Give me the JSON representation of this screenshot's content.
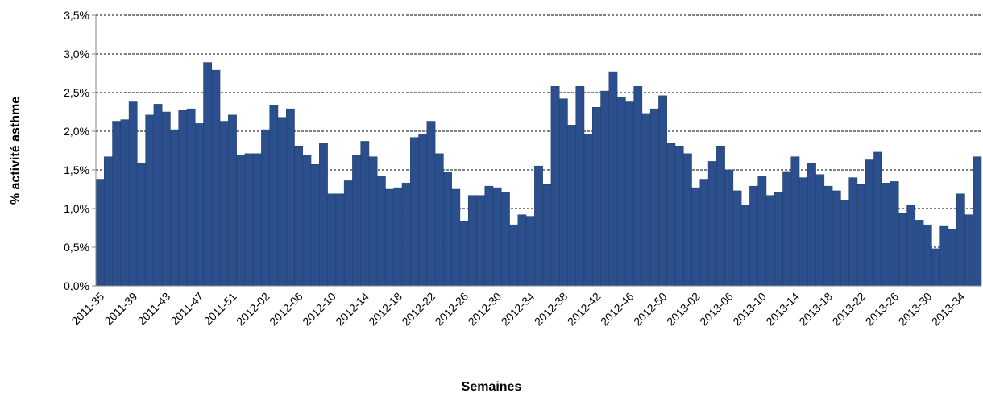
{
  "chart_data": {
    "type": "bar",
    "x_label": "Semaines",
    "y_label": "% activité asthme",
    "categories": [
      "2011-35",
      null,
      null,
      null,
      "2011-39",
      null,
      null,
      null,
      "2011-43",
      null,
      null,
      null,
      "2011-47",
      null,
      null,
      null,
      "2011-51",
      null,
      null,
      null,
      "2012-02",
      null,
      null,
      null,
      "2012-06",
      null,
      null,
      null,
      "2012-10",
      null,
      null,
      null,
      "2012-14",
      null,
      null,
      null,
      "2012-18",
      null,
      null,
      null,
      "2012-22",
      null,
      null,
      null,
      "2012-26",
      null,
      null,
      null,
      "2012-30",
      null,
      null,
      null,
      "2012-34",
      null,
      null,
      null,
      "2012-38",
      null,
      null,
      null,
      "2012-42",
      null,
      null,
      null,
      "2012-46",
      null,
      null,
      null,
      "2012-50",
      null,
      null,
      null,
      "2013-02",
      null,
      null,
      null,
      "2013-06",
      null,
      null,
      null,
      "2013-10",
      null,
      null,
      null,
      "2013-14",
      null,
      null,
      null,
      "2013-18",
      null,
      null,
      null,
      "2013-22",
      null,
      null,
      null,
      "2013-26",
      null,
      null,
      null,
      "2013-30",
      null,
      null,
      null,
      "2013-34",
      null,
      null
    ],
    "values": [
      1.38,
      1.67,
      2.13,
      2.15,
      2.38,
      1.59,
      2.21,
      2.35,
      2.25,
      2.02,
      2.27,
      2.29,
      2.1,
      2.89,
      2.79,
      2.13,
      2.21,
      1.69,
      1.71,
      1.71,
      2.02,
      2.33,
      2.18,
      2.29,
      1.81,
      1.69,
      1.57,
      1.85,
      1.19,
      1.19,
      1.36,
      1.69,
      1.87,
      1.67,
      1.42,
      1.25,
      1.27,
      1.33,
      1.92,
      1.96,
      2.13,
      1.71,
      1.47,
      1.25,
      0.83,
      1.17,
      1.17,
      1.29,
      1.27,
      1.21,
      0.79,
      0.92,
      0.9,
      1.55,
      1.31,
      2.58,
      2.42,
      2.08,
      2.58,
      1.96,
      2.31,
      2.52,
      2.77,
      2.44,
      2.38,
      2.58,
      2.23,
      2.29,
      2.46,
      1.85,
      1.81,
      1.71,
      1.27,
      1.38,
      1.61,
      1.81,
      1.5,
      1.23,
      1.04,
      1.29,
      1.42,
      1.17,
      1.21,
      1.48,
      1.67,
      1.4,
      1.58,
      1.44,
      1.29,
      1.23,
      1.11,
      1.4,
      1.31,
      1.63,
      1.73,
      1.33,
      1.35,
      0.94,
      1.04,
      0.85,
      0.79,
      0.48,
      0.77,
      0.73,
      1.19,
      0.92,
      1.67
    ],
    "color": "#2b4f8c",
    "ylim": [
      0,
      3.5
    ],
    "yticks": [
      {
        "value": 0,
        "label": "0,0%"
      },
      {
        "value": 0.5,
        "label": "0,5%"
      },
      {
        "value": 1,
        "label": "1,0%"
      },
      {
        "value": 1.5,
        "label": "1,5%"
      },
      {
        "value": 2,
        "label": "2,0%"
      },
      {
        "value": 2.5,
        "label": "2,5%"
      },
      {
        "value": 3,
        "label": "3,0%"
      },
      {
        "value": 3.5,
        "label": "3,5%"
      }
    ],
    "grid": true
  }
}
